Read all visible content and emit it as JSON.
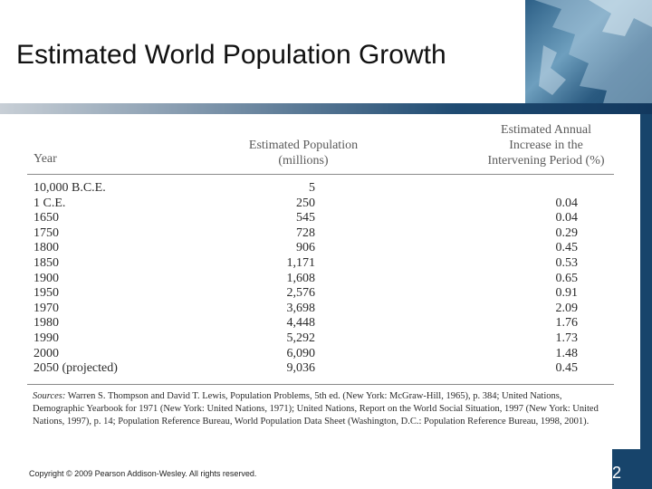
{
  "slide": {
    "title": "Estimated World Population Growth",
    "page_number": "2",
    "copyright": "Copyright © 2009 Pearson Addison-Wesley. All rights reserved."
  },
  "table": {
    "headers": {
      "year": "Year",
      "population_line1": "Estimated Population",
      "population_line2": "(millions)",
      "increase_line1": "Estimated Annual",
      "increase_line2": "Increase in the",
      "increase_line3": "Intervening Period (%)"
    },
    "rows": [
      {
        "year": "10,000 B.C.E.",
        "population": "5",
        "increase": ""
      },
      {
        "year": "1 C.E.",
        "population": "250",
        "increase": "0.04"
      },
      {
        "year": "1650",
        "population": "545",
        "increase": "0.04"
      },
      {
        "year": "1750",
        "population": "728",
        "increase": "0.29"
      },
      {
        "year": "1800",
        "population": "906",
        "increase": "0.45"
      },
      {
        "year": "1850",
        "population": "1,171",
        "increase": "0.53"
      },
      {
        "year": "1900",
        "population": "1,608",
        "increase": "0.65"
      },
      {
        "year": "1950",
        "population": "2,576",
        "increase": "0.91"
      },
      {
        "year": "1970",
        "population": "3,698",
        "increase": "2.09"
      },
      {
        "year": "1980",
        "population": "4,448",
        "increase": "1.76"
      },
      {
        "year": "1990",
        "population": "5,292",
        "increase": "1.73"
      },
      {
        "year": "2000",
        "population": "6,090",
        "increase": "1.48"
      },
      {
        "year": "2050 (projected)",
        "population": "9,036",
        "increase": "0.45"
      }
    ],
    "sources_label": "Sources:",
    "sources_text": "Warren S. Thompson and David T. Lewis, Population Problems, 5th ed. (New York: McGraw-Hill, 1965), p. 384; United Nations, Demographic Yearbook for 1971 (New York: United Nations, 1971); United Nations, Report on the World Social Situation, 1997 (New York: United Nations, 1997), p. 14; Population Reference Bureau, World Population Data Sheet (Washington, D.C.: Population Reference Bureau, 1998, 2001)."
  },
  "colors": {
    "accent_dark_blue": "#17446b",
    "map_blue": "#4f7fa6"
  }
}
